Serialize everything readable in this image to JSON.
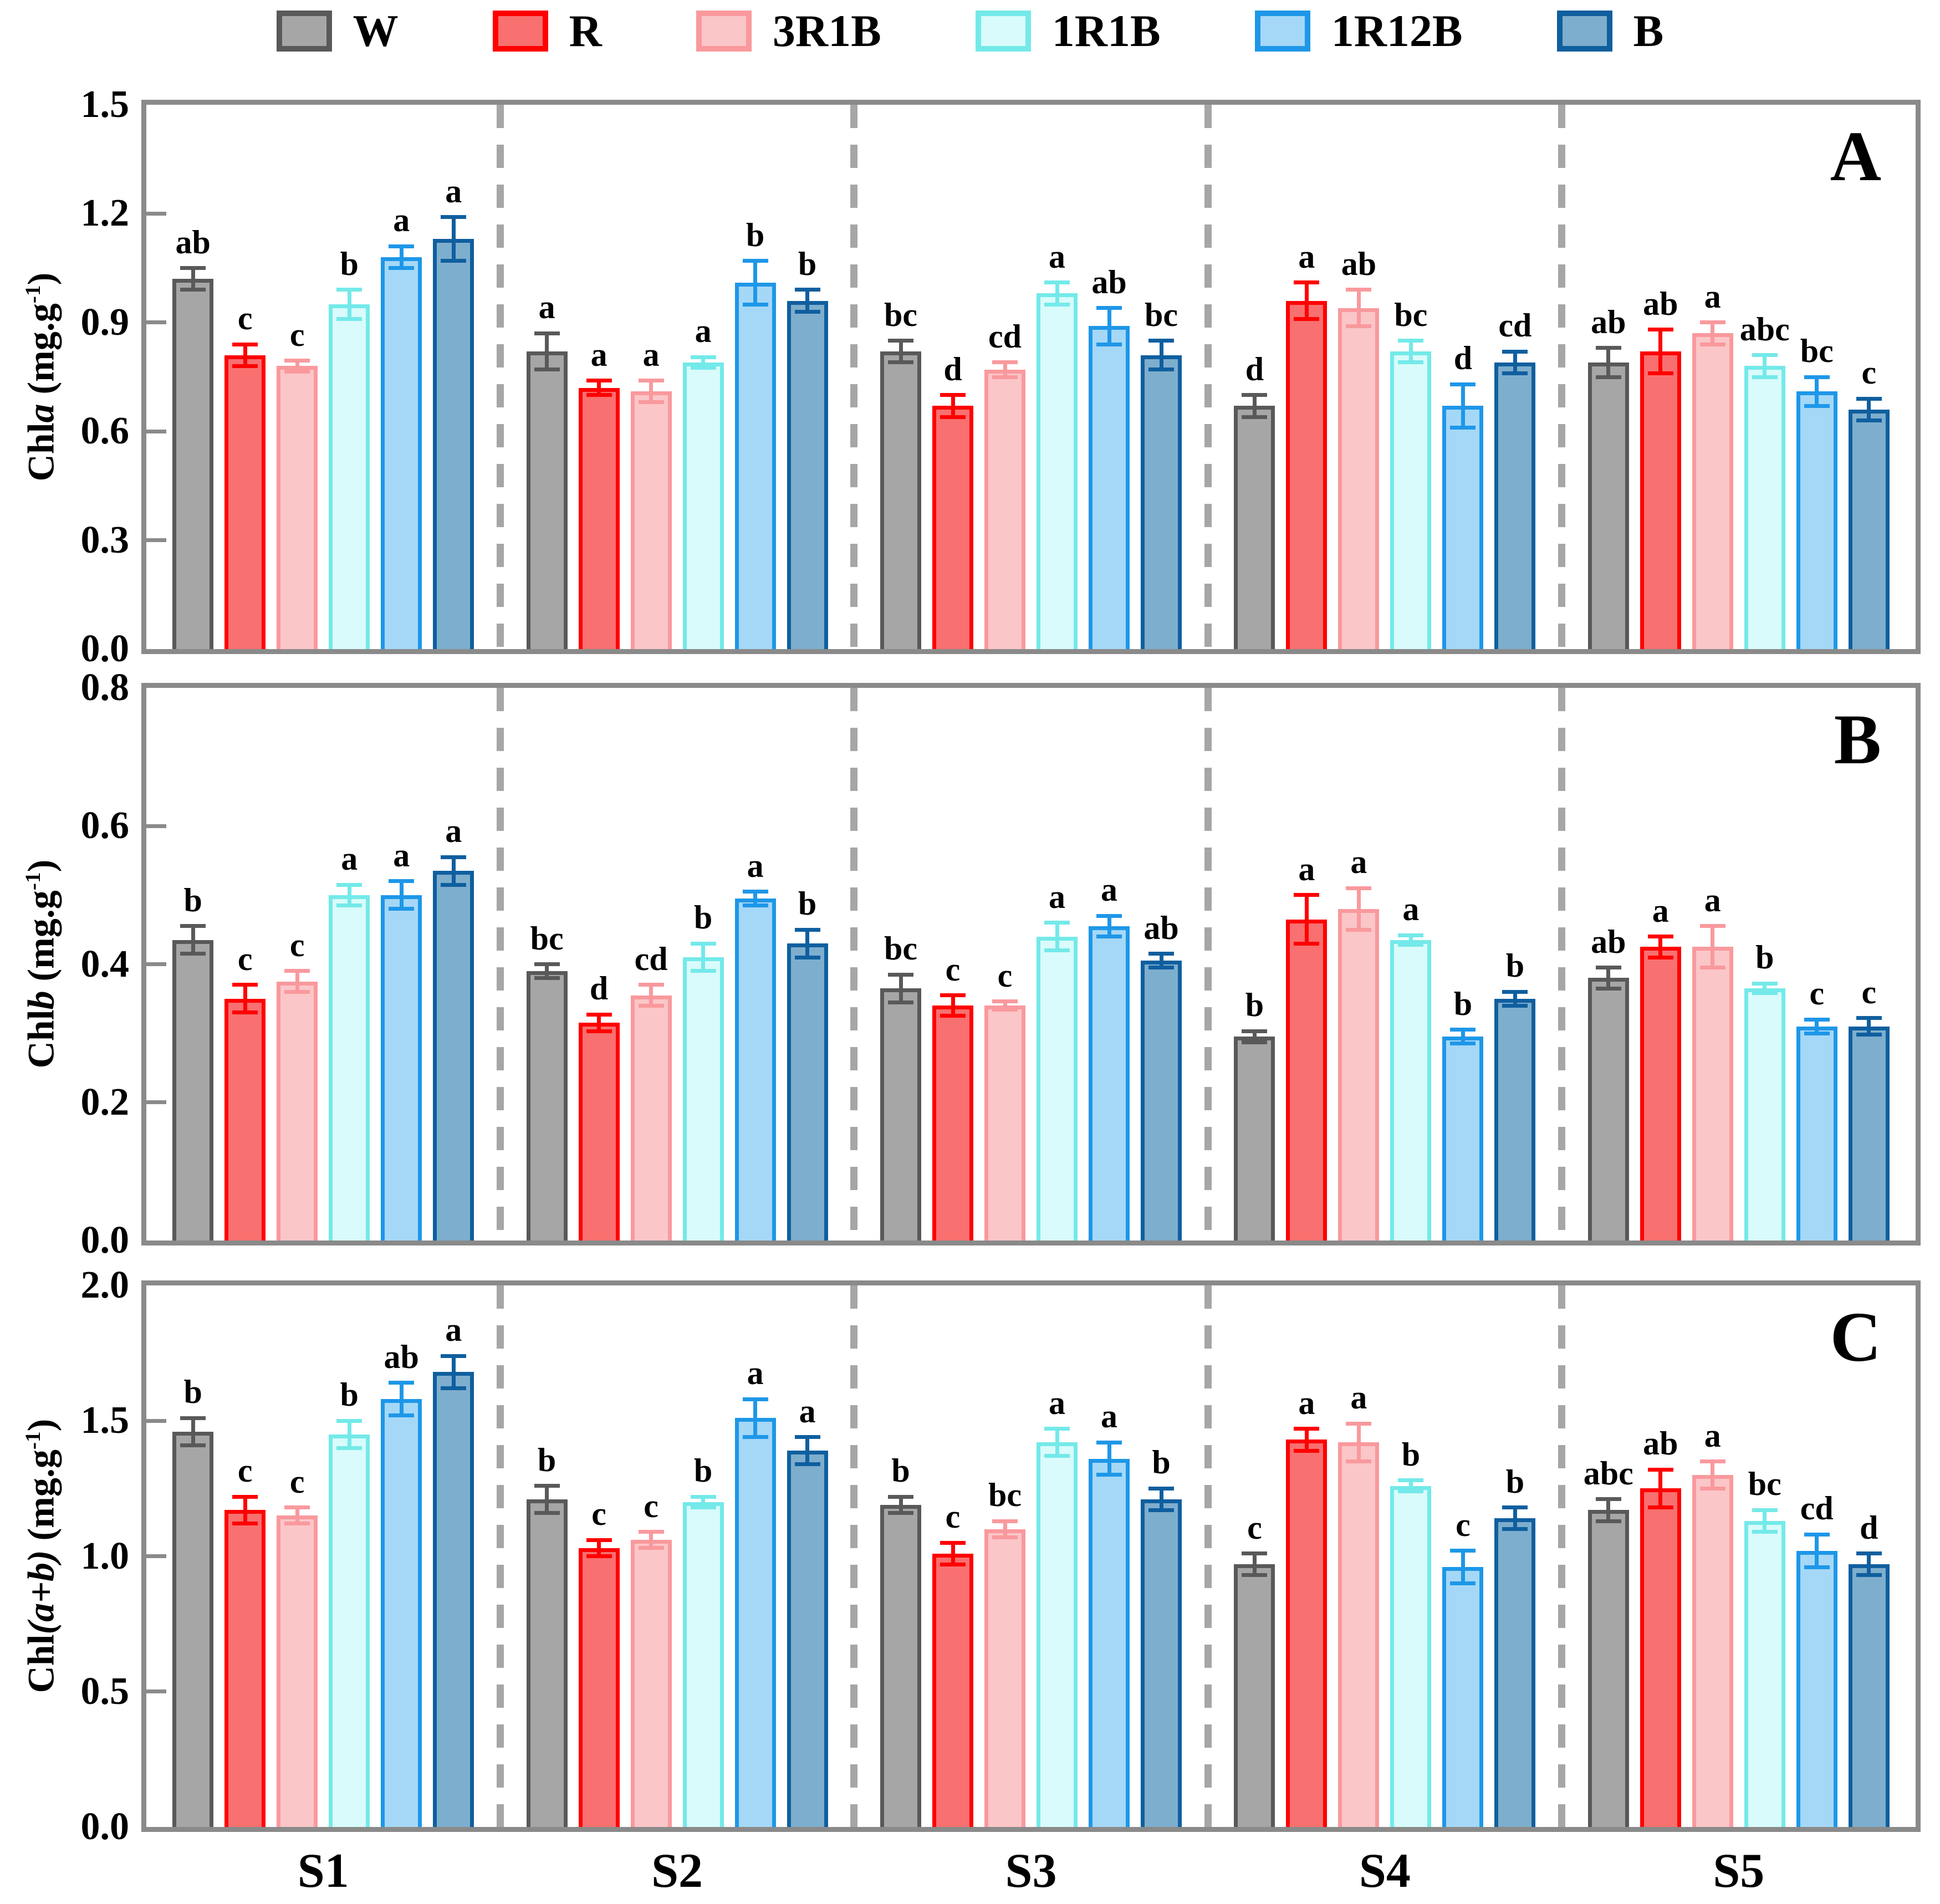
{
  "chart_data": {
    "type": "bar",
    "categories": [
      "S1",
      "S2",
      "S3",
      "S4",
      "S5"
    ],
    "legend_position": "top",
    "grid": false,
    "legend": [
      {
        "name": "W",
        "fill": "#a6a6a6",
        "edge": "#595959"
      },
      {
        "name": "R",
        "fill": "#f87070",
        "edge": "#ff0000"
      },
      {
        "name": "3R1B",
        "fill": "#fbc6c8",
        "edge": "#f9999d"
      },
      {
        "name": "1R1B",
        "fill": "#d9fbfb",
        "edge": "#74e9e9"
      },
      {
        "name": "1R12B",
        "fill": "#a5d8f7",
        "edge": "#1e97e8"
      },
      {
        "name": "B",
        "fill": "#7eaecd",
        "edge": "#0f5f9f"
      }
    ],
    "panels": [
      {
        "label": "A",
        "ylabel": {
          "prefix": "Chl",
          "italic": "a",
          "unit": " (mg.g",
          "exp": "-1",
          "close": ")"
        },
        "ylabel_text": "Chla (mg.g-1)",
        "ylim": [
          0,
          1.5
        ],
        "yticks": [
          "0.0",
          "0.3",
          "0.6",
          "0.9",
          "1.2",
          "1.5"
        ],
        "series": [
          {
            "name": "W",
            "values": [
              1.02,
              0.82,
              0.82,
              0.67,
              0.79
            ],
            "errors": [
              0.03,
              0.05,
              0.03,
              0.03,
              0.04
            ],
            "letters": [
              "ab",
              "a",
              "bc",
              "d",
              "ab"
            ]
          },
          {
            "name": "R",
            "values": [
              0.81,
              0.72,
              0.67,
              0.96,
              0.82
            ],
            "errors": [
              0.03,
              0.02,
              0.03,
              0.05,
              0.06
            ],
            "letters": [
              "c",
              "a",
              "d",
              "a",
              "ab"
            ]
          },
          {
            "name": "3R1B",
            "values": [
              0.78,
              0.71,
              0.77,
              0.94,
              0.87
            ],
            "errors": [
              0.015,
              0.03,
              0.02,
              0.05,
              0.03
            ],
            "letters": [
              "c",
              "a",
              "cd",
              "ab",
              "a"
            ]
          },
          {
            "name": "1R1B",
            "values": [
              0.95,
              0.79,
              0.98,
              0.82,
              0.78
            ],
            "errors": [
              0.04,
              0.015,
              0.03,
              0.03,
              0.03
            ],
            "letters": [
              "b",
              "a",
              "a",
              "bc",
              "abc"
            ]
          },
          {
            "name": "1R12B",
            "values": [
              1.08,
              1.01,
              0.89,
              0.67,
              0.71
            ],
            "errors": [
              0.03,
              0.06,
              0.05,
              0.06,
              0.04
            ],
            "letters": [
              "a",
              "b",
              "ab",
              "d",
              "bc"
            ]
          },
          {
            "name": "B",
            "values": [
              1.13,
              0.96,
              0.81,
              0.79,
              0.66
            ],
            "errors": [
              0.06,
              0.03,
              0.04,
              0.03,
              0.03
            ],
            "letters": [
              "a",
              "b",
              "bc",
              "cd",
              "c"
            ]
          }
        ]
      },
      {
        "label": "B",
        "ylabel": {
          "prefix": "Chl",
          "italic": "b",
          "unit": " (mg.g",
          "exp": "-1",
          "close": ")"
        },
        "ylabel_text": "Chlb (mg.g-1)",
        "ylim": [
          0,
          0.8
        ],
        "yticks": [
          "0.0",
          "0.2",
          "0.4",
          "0.6",
          "0.8"
        ],
        "series": [
          {
            "name": "W",
            "values": [
              0.435,
              0.39,
              0.365,
              0.295,
              0.38
            ],
            "errors": [
              0.02,
              0.01,
              0.02,
              0.008,
              0.015
            ],
            "letters": [
              "b",
              "bc",
              "bc",
              "b",
              "ab"
            ]
          },
          {
            "name": "R",
            "values": [
              0.35,
              0.315,
              0.34,
              0.465,
              0.425
            ],
            "errors": [
              0.02,
              0.012,
              0.015,
              0.035,
              0.015
            ],
            "letters": [
              "c",
              "d",
              "c",
              "a",
              "a"
            ]
          },
          {
            "name": "3R1B",
            "values": [
              0.375,
              0.355,
              0.34,
              0.48,
              0.425
            ],
            "errors": [
              0.015,
              0.015,
              0.006,
              0.03,
              0.03
            ],
            "letters": [
              "c",
              "cd",
              "c",
              "a",
              "a"
            ]
          },
          {
            "name": "1R1B",
            "values": [
              0.5,
              0.41,
              0.44,
              0.435,
              0.365
            ],
            "errors": [
              0.015,
              0.02,
              0.02,
              0.007,
              0.007
            ],
            "letters": [
              "a",
              "b",
              "a",
              "a",
              "b"
            ]
          },
          {
            "name": "1R12B",
            "values": [
              0.5,
              0.495,
              0.455,
              0.295,
              0.31
            ],
            "errors": [
              0.02,
              0.01,
              0.015,
              0.01,
              0.01
            ],
            "letters": [
              "a",
              "a",
              "a",
              "b",
              "c"
            ]
          },
          {
            "name": "B",
            "values": [
              0.535,
              0.43,
              0.405,
              0.35,
              0.31
            ],
            "errors": [
              0.02,
              0.02,
              0.01,
              0.01,
              0.012
            ],
            "letters": [
              "a",
              "b",
              "ab",
              "b",
              "c"
            ]
          }
        ]
      },
      {
        "label": "C",
        "ylabel": {
          "prefix": "Chl",
          "italic": "(a+b)",
          "unit": " (mg.g",
          "exp": "-1",
          "close": ")"
        },
        "ylabel_text": "Chl(a+b) (mg.g-1)",
        "ylim": [
          0,
          2.0
        ],
        "yticks": [
          "0.0",
          "0.5",
          "1.0",
          "1.5",
          "2.0"
        ],
        "series": [
          {
            "name": "W",
            "values": [
              1.46,
              1.21,
              1.19,
              0.97,
              1.17
            ],
            "errors": [
              0.05,
              0.05,
              0.03,
              0.04,
              0.04
            ],
            "letters": [
              "b",
              "b",
              "b",
              "c",
              "abc"
            ]
          },
          {
            "name": "R",
            "values": [
              1.17,
              1.03,
              1.01,
              1.43,
              1.25
            ],
            "errors": [
              0.05,
              0.03,
              0.04,
              0.04,
              0.07
            ],
            "letters": [
              "c",
              "c",
              "c",
              "a",
              "ab"
            ]
          },
          {
            "name": "3R1B",
            "values": [
              1.15,
              1.06,
              1.1,
              1.42,
              1.3
            ],
            "errors": [
              0.03,
              0.03,
              0.03,
              0.07,
              0.05
            ],
            "letters": [
              "c",
              "c",
              "bc",
              "a",
              "a"
            ]
          },
          {
            "name": "1R1B",
            "values": [
              1.45,
              1.2,
              1.42,
              1.26,
              1.13
            ],
            "errors": [
              0.05,
              0.02,
              0.05,
              0.02,
              0.04
            ],
            "letters": [
              "b",
              "b",
              "a",
              "b",
              "bc"
            ]
          },
          {
            "name": "1R12B",
            "values": [
              1.58,
              1.51,
              1.36,
              0.96,
              1.02
            ],
            "errors": [
              0.06,
              0.07,
              0.06,
              0.06,
              0.06
            ],
            "letters": [
              "ab",
              "a",
              "a",
              "c",
              "cd"
            ]
          },
          {
            "name": "B",
            "values": [
              1.68,
              1.39,
              1.21,
              1.14,
              0.97
            ],
            "errors": [
              0.06,
              0.05,
              0.04,
              0.04,
              0.04
            ],
            "letters": [
              "a",
              "a",
              "b",
              "b",
              "d"
            ]
          }
        ]
      }
    ]
  }
}
